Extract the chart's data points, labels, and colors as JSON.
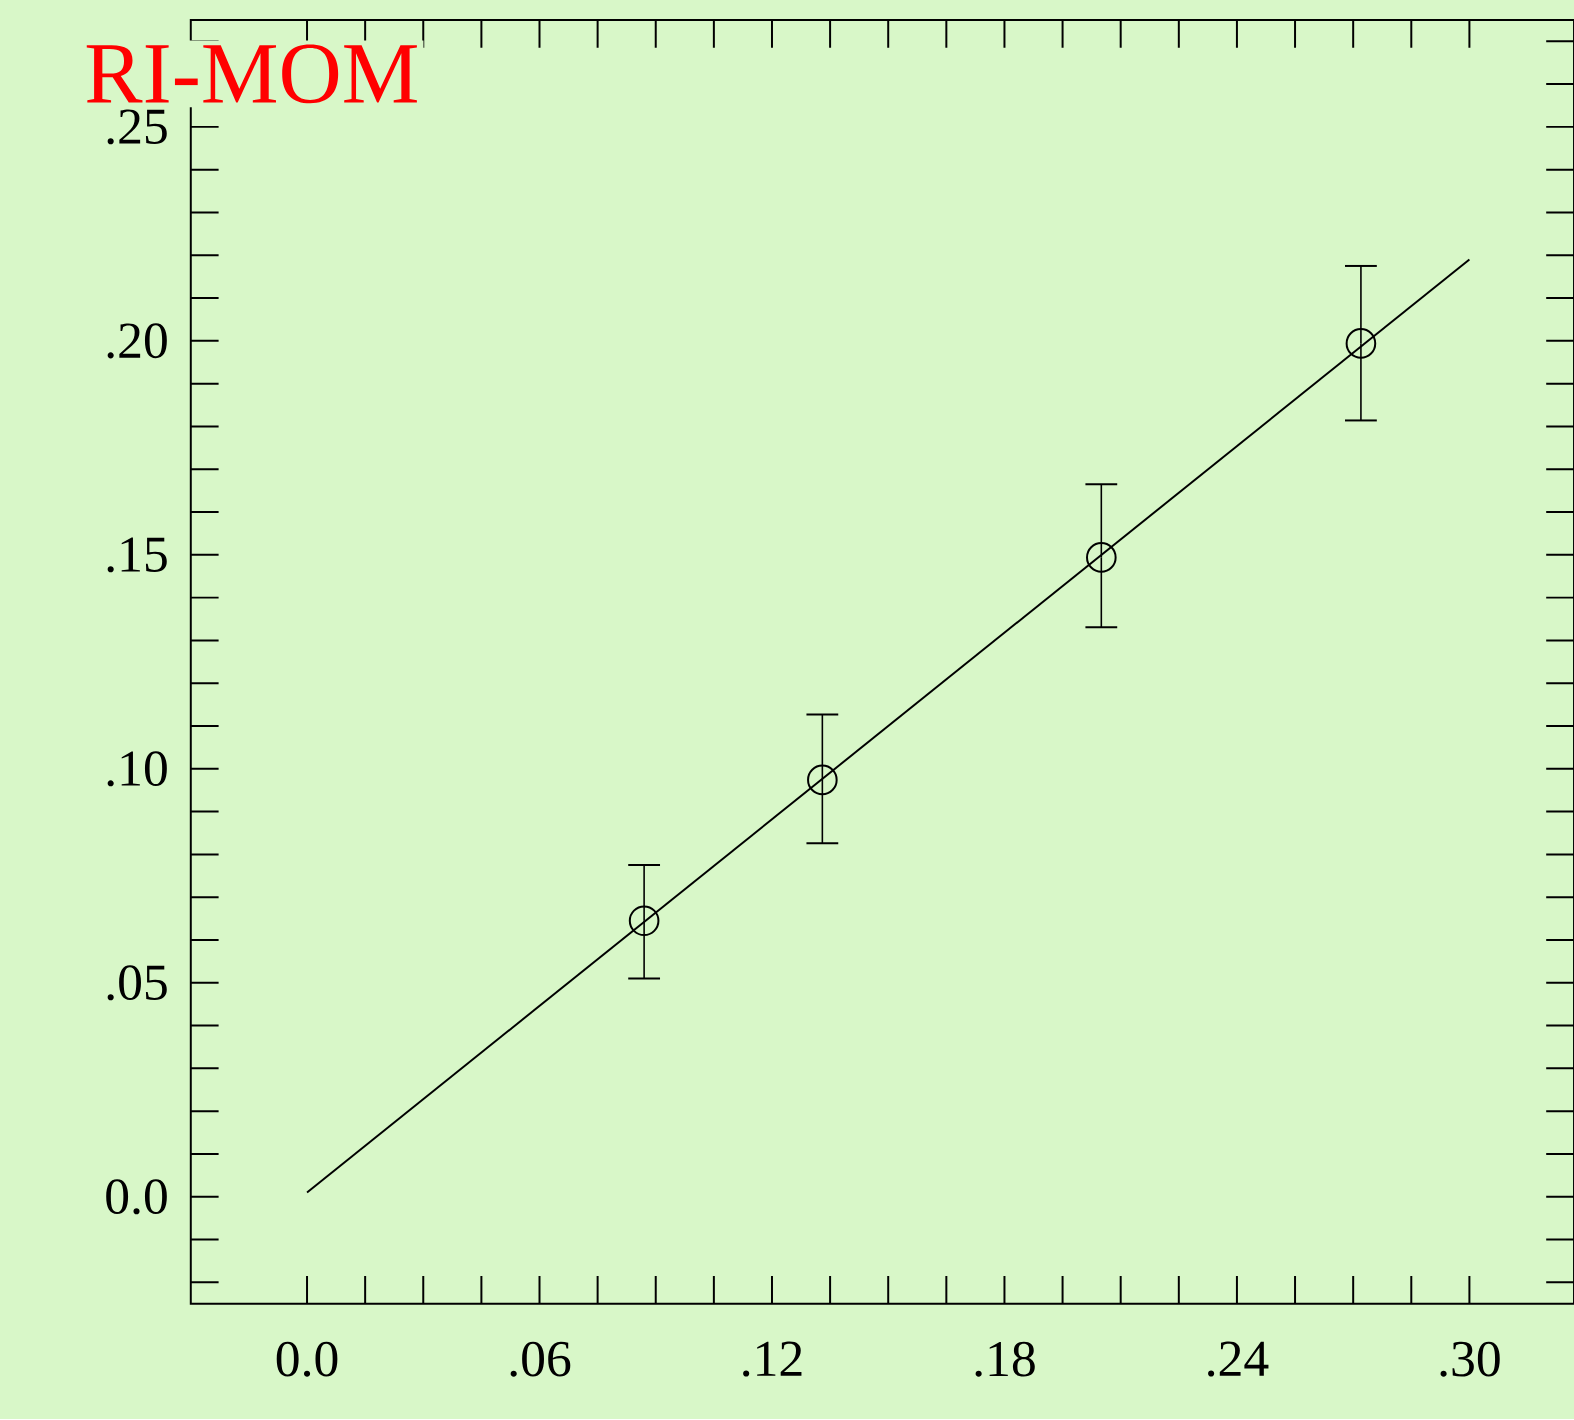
{
  "chart_data": {
    "type": "scatter",
    "title": "RI-MOM",
    "marker": "circle",
    "grid": false,
    "xlim": [
      -0.03,
      0.327
    ],
    "ylim": [
      -0.025,
      0.275
    ],
    "xticks": [
      {
        "value": 0,
        "label": "0.0"
      },
      {
        "value": 0.06,
        "label": ".06"
      },
      {
        "value": 0.12,
        "label": ".12"
      },
      {
        "value": 0.18,
        "label": ".18"
      },
      {
        "value": 0.24,
        "label": ".24"
      },
      {
        "value": 0.3,
        "label": ".30"
      },
      {
        "value": 0.015,
        "label": null
      },
      {
        "value": 0.03,
        "label": null
      },
      {
        "value": 0.045,
        "label": null
      },
      {
        "value": 0.075,
        "label": null
      },
      {
        "value": 0.09,
        "label": null
      },
      {
        "value": 0.105,
        "label": null
      },
      {
        "value": 0.135,
        "label": null
      },
      {
        "value": 0.15,
        "label": null
      },
      {
        "value": 0.165,
        "label": null
      },
      {
        "value": 0.195,
        "label": null
      },
      {
        "value": 0.21,
        "label": null
      },
      {
        "value": 0.225,
        "label": null
      },
      {
        "value": 0.255,
        "label": null
      },
      {
        "value": 0.27,
        "label": null
      },
      {
        "value": 0.285,
        "label": null
      }
    ],
    "yticks": [
      {
        "value": 0,
        "label": "0.0"
      },
      {
        "value": 0.05,
        "label": ".05"
      },
      {
        "value": 0.1,
        "label": ".10"
      },
      {
        "value": 0.15,
        "label": ".15"
      },
      {
        "value": 0.2,
        "label": ".20"
      },
      {
        "value": 0.25,
        "label": ".25"
      },
      {
        "value": -0.02,
        "label": null
      },
      {
        "value": -0.01,
        "label": null
      },
      {
        "value": 0.01,
        "label": null
      },
      {
        "value": 0.02,
        "label": null
      },
      {
        "value": 0.03,
        "label": null
      },
      {
        "value": 0.04,
        "label": null
      },
      {
        "value": 0.06,
        "label": null
      },
      {
        "value": 0.07,
        "label": null
      },
      {
        "value": 0.08,
        "label": null
      },
      {
        "value": 0.09,
        "label": null
      },
      {
        "value": 0.11,
        "label": null
      },
      {
        "value": 0.12,
        "label": null
      },
      {
        "value": 0.13,
        "label": null
      },
      {
        "value": 0.14,
        "label": null
      },
      {
        "value": 0.16,
        "label": null
      },
      {
        "value": 0.17,
        "label": null
      },
      {
        "value": 0.18,
        "label": null
      },
      {
        "value": 0.19,
        "label": null
      },
      {
        "value": 0.21,
        "label": null
      },
      {
        "value": 0.22,
        "label": null
      },
      {
        "value": 0.23,
        "label": null
      },
      {
        "value": 0.24,
        "label": null
      },
      {
        "value": 0.26,
        "label": null
      },
      {
        "value": 0.27,
        "label": null
      }
    ],
    "series": [
      {
        "type": "scatter",
        "color": "#000000",
        "x": [
          0.087,
          0.133,
          0.205,
          0.272
        ],
        "values": [
          0.0645,
          0.0974,
          0.1494,
          0.1994
        ],
        "errors": [
          [
            0.051,
            0.0775
          ],
          [
            0.0826,
            0.1127
          ],
          [
            0.1331,
            0.1665
          ],
          [
            0.1814,
            0.2175
          ]
        ]
      },
      {
        "type": "line",
        "color": "#000000",
        "marker": "none",
        "line_style": "solid",
        "x": [
          0,
          0.3
        ],
        "values": [
          0.001,
          0.219
        ]
      }
    ]
  }
}
